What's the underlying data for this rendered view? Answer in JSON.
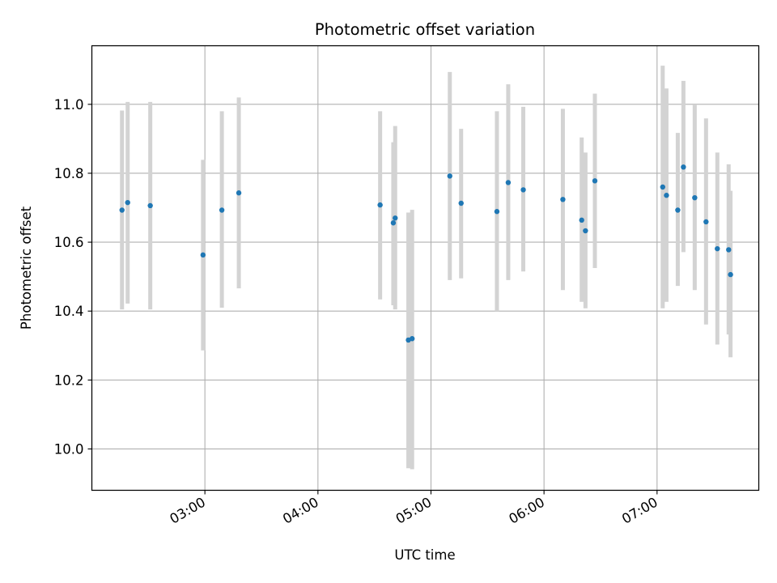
{
  "chart_data": {
    "type": "scatter",
    "title": "Photometric offset variation",
    "xlabel": "UTC time",
    "ylabel": "Photometric offset",
    "xlim": [
      "02:00",
      "07:54"
    ],
    "ylim": [
      9.88,
      11.17
    ],
    "x_ticks": [
      "03:00",
      "04:00",
      "05:00",
      "06:00",
      "07:00"
    ],
    "y_ticks": [
      "10.0",
      "10.2",
      "10.4",
      "10.6",
      "10.8",
      "11.0"
    ],
    "grid": true,
    "colors": {
      "points": "#1f77b4",
      "error_bars": "#d3d3d3",
      "grid": "#b0b0b0"
    },
    "points": [
      {
        "x": "02:16",
        "y": 10.693,
        "low": 10.405,
        "high": 10.982
      },
      {
        "x": "02:19",
        "y": 10.715,
        "low": 10.422,
        "high": 11.007
      },
      {
        "x": "02:31",
        "y": 10.706,
        "low": 10.405,
        "high": 11.007
      },
      {
        "x": "02:59",
        "y": 10.563,
        "low": 10.286,
        "high": 10.839
      },
      {
        "x": "03:09",
        "y": 10.693,
        "low": 10.41,
        "high": 10.98
      },
      {
        "x": "03:18",
        "y": 10.743,
        "low": 10.466,
        "high": 11.02
      },
      {
        "x": "04:33",
        "y": 10.708,
        "low": 10.434,
        "high": 10.98
      },
      {
        "x": "04:40",
        "y": 10.656,
        "low": 10.417,
        "high": 10.89
      },
      {
        "x": "04:41",
        "y": 10.67,
        "low": 10.405,
        "high": 10.937
      },
      {
        "x": "04:48",
        "y": 10.316,
        "low": 9.944,
        "high": 10.686
      },
      {
        "x": "04:50",
        "y": 10.32,
        "low": 9.941,
        "high": 10.694
      },
      {
        "x": "05:10",
        "y": 10.792,
        "low": 10.49,
        "high": 11.094
      },
      {
        "x": "05:16",
        "y": 10.713,
        "low": 10.495,
        "high": 10.929
      },
      {
        "x": "05:35",
        "y": 10.689,
        "low": 10.4,
        "high": 10.98
      },
      {
        "x": "05:41",
        "y": 10.773,
        "low": 10.49,
        "high": 11.058
      },
      {
        "x": "05:49",
        "y": 10.752,
        "low": 10.515,
        "high": 10.993
      },
      {
        "x": "06:10",
        "y": 10.724,
        "low": 10.461,
        "high": 10.987
      },
      {
        "x": "06:20",
        "y": 10.664,
        "low": 10.427,
        "high": 10.904
      },
      {
        "x": "06:22",
        "y": 10.633,
        "low": 10.408,
        "high": 10.86
      },
      {
        "x": "06:27",
        "y": 10.778,
        "low": 10.525,
        "high": 11.031
      },
      {
        "x": "07:03",
        "y": 10.76,
        "low": 10.408,
        "high": 11.112
      },
      {
        "x": "07:05",
        "y": 10.736,
        "low": 10.427,
        "high": 11.046
      },
      {
        "x": "07:11",
        "y": 10.693,
        "low": 10.473,
        "high": 10.917
      },
      {
        "x": "07:14",
        "y": 10.818,
        "low": 10.571,
        "high": 11.068
      },
      {
        "x": "07:20",
        "y": 10.729,
        "low": 10.461,
        "high": 10.998
      },
      {
        "x": "07:26",
        "y": 10.659,
        "low": 10.361,
        "high": 10.959
      },
      {
        "x": "07:32",
        "y": 10.581,
        "low": 10.303,
        "high": 10.86
      },
      {
        "x": "07:38",
        "y": 10.578,
        "low": 10.332,
        "high": 10.826
      },
      {
        "x": "07:39",
        "y": 10.506,
        "low": 10.266,
        "high": 10.749
      }
    ]
  }
}
